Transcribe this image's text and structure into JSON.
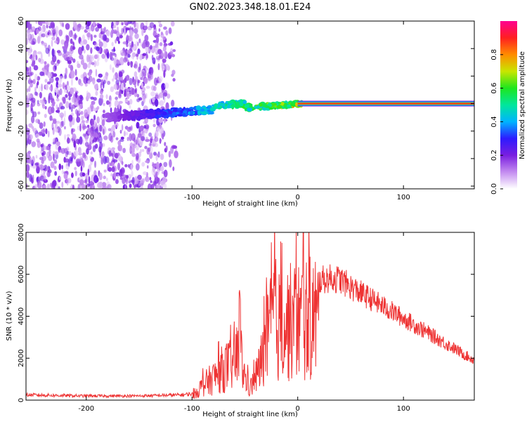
{
  "title": "GN02.2023.348.18.01.E24",
  "chart_data": [
    {
      "type": "heatmap",
      "xlabel": "Height of straight line (km)",
      "ylabel": "Frequency (Hz)",
      "xlim": [
        -257,
        167
      ],
      "ylim": [
        -62,
        60
      ],
      "xticks": [
        -200,
        -100,
        0,
        100
      ],
      "yticks": [
        60,
        40,
        20,
        0,
        -20,
        -40,
        -60
      ],
      "colorbar": {
        "label": "Normalized spectral amplitude",
        "range": [
          0,
          1
        ],
        "ticks": [
          0.0,
          0.2,
          0.4,
          0.6,
          0.8
        ],
        "colors": [
          "#ffffff",
          "#c48cf0",
          "#7a1fe0",
          "#2d1bff",
          "#00b4ff",
          "#00e69c",
          "#1ee61e",
          "#c8e600",
          "#ff8c00",
          "#ff2020",
          "#ff0090"
        ]
      },
      "regions": [
        {
          "name": "diffuse noise",
          "x_from": -257,
          "x_to": -115,
          "y_from": -62,
          "y_to": 60,
          "amplitude": 0.12
        },
        {
          "name": "chirp track",
          "x_from": -180,
          "x_to": 5,
          "y_center_start": -10,
          "y_center_end": 0,
          "amplitude_start": 0.15,
          "amplitude_end": 0.75
        },
        {
          "name": "steady carrier",
          "x_from": 0,
          "x_to": 167,
          "y_center": 0,
          "amplitude": 0.85
        }
      ]
    },
    {
      "type": "line",
      "xlabel": "Height of straight line (km)",
      "ylabel": "SNR (10 * v/v)",
      "xlim": [
        -257,
        167
      ],
      "ylim": [
        0,
        8000
      ],
      "xticks": [
        -200,
        -100,
        0,
        100
      ],
      "yticks": [
        0,
        2000,
        4000,
        6000,
        8000
      ],
      "series_color": "#ee3333",
      "x": [
        -257,
        -200,
        -150,
        -110,
        -100,
        -95,
        -90,
        -80,
        -70,
        -60,
        -55,
        -50,
        -45,
        -40,
        -35,
        -30,
        -25,
        -22,
        -20,
        -15,
        -10,
        -5,
        0,
        10,
        20,
        30,
        40,
        50,
        60,
        80,
        100,
        120,
        140,
        160,
        167
      ],
      "y": [
        250,
        200,
        200,
        250,
        300,
        600,
        1000,
        1500,
        2200,
        2500,
        3500,
        1500,
        800,
        1500,
        2500,
        3800,
        5000,
        6000,
        5200,
        5000,
        5200,
        5300,
        5400,
        5600,
        5700,
        5800,
        5750,
        5400,
        5100,
        4500,
        3900,
        3300,
        2700,
        2100,
        1900
      ]
    }
  ]
}
